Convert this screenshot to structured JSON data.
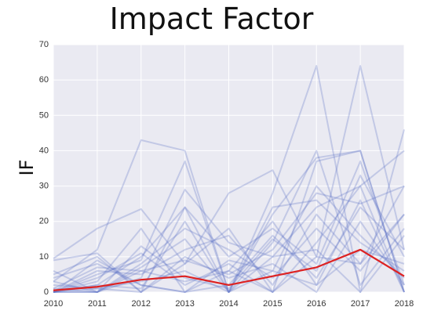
{
  "chart_data": {
    "type": "line",
    "title": "Impact Factor",
    "xlabel": "",
    "ylabel": "IF",
    "x": [
      "2010",
      "2011",
      "2012",
      "2013",
      "2014",
      "2015",
      "2016",
      "2017",
      "2018"
    ],
    "ylim": [
      0,
      70
    ],
    "yticks": [
      0,
      10,
      20,
      30,
      40,
      50,
      60,
      70
    ],
    "grid": true,
    "legend": "none",
    "colors": {
      "background": "#eaeaf2",
      "grid": "#ffffff",
      "series": "#5a6fc4",
      "highlight": "#dd2222"
    },
    "highlight_series": {
      "values": [
        0.5,
        1.5,
        3.5,
        4.5,
        2.0,
        4.5,
        7.0,
        12.0,
        4.5
      ]
    },
    "series": [
      {
        "values": [
          9.5,
          18.0,
          23.5,
          8.0,
          28.0,
          34.5,
          10.0,
          8.0,
          22.0
        ]
      },
      {
        "values": [
          3.0,
          12.0,
          43.0,
          40.0,
          0.0,
          22.0,
          38.0,
          40.0,
          0.0
        ]
      },
      {
        "values": [
          0.0,
          5.0,
          9.0,
          37.0,
          0.0,
          28.0,
          64.0,
          0.0,
          46.0
        ]
      },
      {
        "values": [
          0.0,
          3.0,
          18.0,
          0.0,
          6.0,
          0.0,
          10.0,
          64.0,
          12.0
        ]
      },
      {
        "values": [
          5.0,
          10.0,
          0.0,
          24.0,
          0.0,
          14.0,
          40.0,
          2.0,
          18.0
        ]
      },
      {
        "values": [
          0.0,
          0.0,
          4.0,
          29.0,
          14.0,
          10.0,
          24.0,
          30.0,
          0.0
        ]
      },
      {
        "values": [
          0.0,
          2.0,
          10.0,
          24.0,
          10.0,
          18.0,
          8.0,
          37.0,
          2.0
        ]
      },
      {
        "values": [
          1.0,
          7.0,
          6.0,
          9.0,
          5.0,
          12.0,
          28.0,
          25.0,
          30.0
        ]
      },
      {
        "values": [
          2.0,
          1.0,
          0.0,
          8.0,
          18.0,
          0.0,
          14.0,
          30.0,
          40.0
        ]
      },
      {
        "values": [
          0.0,
          9.0,
          2.0,
          0.0,
          2.0,
          16.0,
          4.0,
          24.0,
          12.0
        ]
      },
      {
        "values": [
          6.0,
          0.0,
          7.0,
          15.0,
          0.0,
          6.0,
          2.0,
          12.0,
          8.0
        ]
      },
      {
        "values": [
          0.0,
          4.0,
          11.0,
          2.0,
          8.0,
          0.0,
          37.0,
          40.0,
          0.0
        ]
      },
      {
        "values": [
          3.0,
          0.0,
          8.0,
          18.0,
          12.0,
          4.0,
          18.0,
          6.0,
          22.0
        ]
      },
      {
        "values": [
          0.0,
          1.0,
          3.0,
          6.0,
          0.0,
          24.0,
          26.0,
          14.0,
          6.0
        ]
      },
      {
        "values": [
          9.0,
          11.0,
          0.0,
          10.0,
          4.0,
          8.0,
          0.0,
          20.0,
          2.0
        ]
      },
      {
        "values": [
          0.0,
          6.0,
          5.0,
          12.0,
          16.0,
          2.0,
          22.0,
          8.0,
          30.0
        ]
      },
      {
        "values": [
          1.0,
          0.0,
          13.0,
          4.0,
          1.0,
          15.0,
          6.0,
          33.0,
          10.0
        ]
      },
      {
        "values": [
          0.0,
          2.0,
          1.0,
          20.0,
          0.0,
          10.0,
          12.0,
          0.0,
          16.0
        ]
      },
      {
        "values": [
          4.0,
          8.0,
          2.0,
          0.0,
          9.0,
          6.0,
          30.0,
          16.0,
          4.0
        ]
      },
      {
        "values": [
          0.0,
          0.0,
          6.0,
          3.0,
          6.0,
          20.0,
          2.0,
          26.0,
          0.0
        ]
      }
    ]
  }
}
